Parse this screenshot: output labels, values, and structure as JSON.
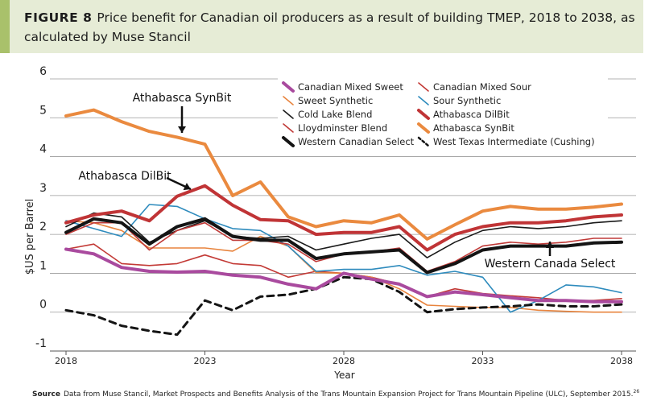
{
  "header": {
    "figure_label": "FIGURE 8",
    "title": "Price benefit for Canadian oil producers as a result of building TMEP, 2018 to 2038, as calculated by Muse Stancil"
  },
  "source": {
    "label": "Source",
    "text": "Data from Muse Stancil, Market Prospects and Benefits Analysis of the Trans Mountain Expansion Project for Trans Mountain Pipeline (ULC), September 2015.",
    "footnote": "26"
  },
  "chart_data": {
    "type": "line",
    "xlabel": "Year",
    "ylabel": "$US per Barrel",
    "xlim": [
      2018,
      2038
    ],
    "ylim": [
      -1,
      6
    ],
    "x_ticks": [
      "2018",
      "2023",
      "2028",
      "2033",
      "2038"
    ],
    "y_ticks": [
      "-1",
      "0",
      "1",
      "2",
      "3",
      "4",
      "5",
      "6"
    ],
    "grid": "horizontal",
    "legend_position": "top-right",
    "x": [
      2018,
      2019,
      2020,
      2021,
      2022,
      2023,
      2024,
      2025,
      2026,
      2027,
      2028,
      2029,
      2030,
      2031,
      2032,
      2033,
      2034,
      2035,
      2036,
      2037,
      2038
    ],
    "series": [
      {
        "name": "Canadian Mixed Sweet",
        "color": "#a94a9e",
        "style": "thick",
        "values": [
          1.62,
          1.5,
          1.15,
          1.05,
          1.03,
          1.05,
          0.95,
          0.9,
          0.72,
          0.6,
          1.0,
          0.85,
          0.72,
          0.4,
          0.52,
          0.45,
          0.37,
          0.3,
          0.3,
          0.27,
          0.27
        ]
      },
      {
        "name": "Canadian Mixed Sour",
        "color": "#c33a36",
        "style": "thin",
        "values": [
          1.62,
          1.75,
          1.25,
          1.2,
          1.25,
          1.47,
          1.25,
          1.2,
          0.9,
          1.05,
          1.0,
          0.9,
          0.72,
          0.4,
          0.6,
          0.48,
          0.42,
          0.37,
          0.3,
          0.3,
          0.35
        ]
      },
      {
        "name": "Sweet Synthetic",
        "color": "#e8843e",
        "style": "thin",
        "values": [
          2.35,
          2.3,
          2.1,
          1.65,
          1.65,
          1.65,
          1.57,
          1.95,
          1.7,
          1.02,
          1.0,
          0.9,
          0.6,
          0.18,
          0.15,
          0.12,
          0.12,
          0.05,
          0.02,
          0.0,
          0.0
        ]
      },
      {
        "name": "Sour Synthetic",
        "color": "#2e8bbd",
        "style": "thin",
        "values": [
          2.35,
          2.15,
          1.95,
          2.77,
          2.72,
          2.4,
          2.15,
          2.1,
          1.7,
          1.05,
          1.1,
          1.1,
          1.2,
          0.95,
          1.05,
          0.9,
          0.0,
          0.3,
          0.7,
          0.65,
          0.5
        ]
      },
      {
        "name": "Cold Lake Blend",
        "color": "#1a1a1a",
        "style": "thin",
        "values": [
          2.2,
          2.55,
          2.45,
          1.8,
          2.1,
          2.35,
          1.95,
          1.9,
          1.95,
          1.6,
          1.75,
          1.9,
          2.0,
          1.4,
          1.8,
          2.1,
          2.2,
          2.15,
          2.2,
          2.3,
          2.35
        ]
      },
      {
        "name": "Athabasca DilBit",
        "color": "#c03436",
        "style": "thick",
        "values": [
          2.3,
          2.5,
          2.6,
          2.35,
          2.98,
          3.25,
          2.75,
          2.38,
          2.35,
          2.0,
          2.05,
          2.05,
          2.2,
          1.6,
          2.0,
          2.2,
          2.3,
          2.3,
          2.35,
          2.45,
          2.5
        ]
      },
      {
        "name": "Lloydminster Blend",
        "color": "#c03a38",
        "style": "thin",
        "values": [
          2.0,
          2.3,
          2.3,
          1.6,
          2.1,
          2.3,
          1.85,
          1.85,
          1.75,
          1.3,
          1.5,
          1.55,
          1.65,
          1.05,
          1.3,
          1.7,
          1.8,
          1.75,
          1.8,
          1.9,
          1.9
        ]
      },
      {
        "name": "Athabasca SynBit",
        "color": "#ea8a3f",
        "style": "thick",
        "values": [
          5.05,
          5.2,
          4.9,
          4.65,
          4.5,
          4.32,
          3.0,
          3.35,
          2.45,
          2.2,
          2.35,
          2.3,
          2.5,
          1.88,
          2.25,
          2.6,
          2.72,
          2.65,
          2.65,
          2.7,
          2.78
        ]
      },
      {
        "name": "Western Canadian Select",
        "color": "#141414",
        "style": "thick",
        "values": [
          2.05,
          2.4,
          2.3,
          1.75,
          2.2,
          2.4,
          1.95,
          1.85,
          1.85,
          1.38,
          1.5,
          1.55,
          1.6,
          1.02,
          1.25,
          1.6,
          1.7,
          1.7,
          1.7,
          1.78,
          1.8
        ]
      },
      {
        "name": "West Texas Intermediate (Cushing)",
        "color": "#141414",
        "style": "dashed",
        "values": [
          0.05,
          -0.08,
          -0.35,
          -0.48,
          -0.58,
          0.3,
          0.05,
          0.4,
          0.45,
          0.6,
          0.9,
          0.85,
          0.52,
          0.0,
          0.08,
          0.12,
          0.15,
          0.2,
          0.15,
          0.15,
          0.2
        ]
      }
    ],
    "annotations": [
      {
        "text": "Athabasca SynBit",
        "x": 2022,
        "y": 4.5
      },
      {
        "text": "Athabasca DilBit",
        "x": 2022,
        "y": 2.95
      },
      {
        "text": "Western Canada Select",
        "x": 2035,
        "y": 1.72
      }
    ]
  }
}
